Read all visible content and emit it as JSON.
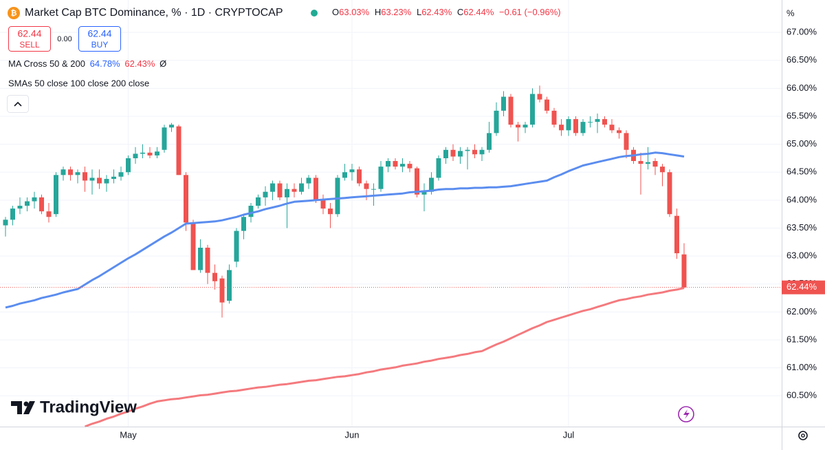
{
  "header": {
    "title": "Market Cap BTC Dominance, % · 1D · CRYPTOCAP",
    "ohlc": [
      {
        "label": "O",
        "text": "63.03%"
      },
      {
        "label": "H",
        "text": "63.23%"
      },
      {
        "label": "L",
        "text": "62.43%"
      },
      {
        "label": "C",
        "text": "62.44%"
      }
    ],
    "change": "−0.61 (−0.96%)",
    "sell": {
      "price": "62.44",
      "label": "SELL"
    },
    "spread": "0.00",
    "buy": {
      "price": "62.44",
      "label": "BUY"
    },
    "indicator": {
      "name": "MA Cross 50 & 200",
      "fast": "64.78%",
      "slow": "62.43%",
      "symbol": "Ø"
    },
    "indicator2": "SMAs 50 close 100 close 200 close",
    "axis_unit": "%",
    "watermark": "TradingView"
  },
  "chart_data": {
    "type": "candlestick",
    "categories": [
      null,
      null,
      null,
      null,
      null,
      null,
      null,
      null,
      null,
      null,
      null,
      null,
      null,
      null,
      null,
      null,
      null,
      "May",
      null,
      null,
      null,
      null,
      null,
      null,
      null,
      null,
      null,
      null,
      null,
      null,
      null,
      null,
      null,
      null,
      null,
      null,
      null,
      null,
      null,
      null,
      null,
      null,
      null,
      null,
      null,
      null,
      null,
      null,
      "Jun",
      null,
      null,
      null,
      null,
      null,
      null,
      null,
      null,
      null,
      null,
      null,
      null,
      null,
      null,
      null,
      null,
      null,
      null,
      null,
      null,
      null,
      null,
      null,
      null,
      null,
      null,
      null,
      null,
      null,
      "Jul",
      null,
      null,
      null,
      null,
      null,
      null,
      null,
      null,
      null,
      null,
      null,
      null,
      null,
      null,
      null,
      null
    ],
    "open": [
      63.55,
      63.65,
      63.85,
      63.9,
      63.98,
      64.05,
      63.8,
      63.75,
      64.45,
      64.55,
      64.45,
      64.5,
      64.35,
      64.4,
      64.3,
      64.38,
      64.42,
      64.5,
      64.75,
      64.83,
      64.85,
      64.8,
      64.9,
      65.3,
      65.32,
      64.45,
      63.6,
      62.75,
      63.15,
      62.7,
      62.6,
      62.2,
      62.9,
      63.45,
      63.7,
      63.9,
      64.05,
      64.15,
      64.3,
      64.05,
      64.2,
      64.15,
      64.3,
      64.4,
      64.0,
      63.85,
      63.75,
      64.4,
      64.5,
      64.55,
      64.3,
      64.2,
      64.2,
      64.6,
      64.7,
      64.6,
      64.65,
      64.57,
      64.1,
      64.15,
      64.4,
      64.75,
      64.9,
      64.78,
      64.88,
      64.9,
      64.82,
      64.9,
      65.2,
      65.6,
      65.85,
      65.35,
      65.3,
      65.35,
      65.9,
      65.8,
      65.6,
      65.35,
      65.25,
      65.45,
      65.2,
      65.4,
      65.4,
      65.45,
      65.35,
      65.25,
      65.2,
      64.9,
      64.7,
      64.65,
      64.7,
      64.6,
      64.5,
      63.72,
      63.03
    ],
    "high": [
      63.7,
      63.9,
      64.05,
      64.05,
      64.15,
      64.1,
      63.95,
      64.5,
      64.6,
      64.6,
      64.55,
      64.6,
      64.55,
      64.55,
      64.45,
      64.55,
      64.6,
      64.8,
      64.95,
      65.0,
      64.95,
      64.95,
      65.35,
      65.38,
      65.35,
      64.5,
      63.65,
      63.3,
      63.2,
      62.85,
      62.65,
      62.85,
      63.5,
      63.75,
      63.95,
      64.1,
      64.25,
      64.35,
      64.35,
      64.3,
      64.3,
      64.4,
      64.45,
      64.45,
      64.1,
      63.95,
      64.45,
      64.65,
      64.65,
      64.6,
      64.35,
      64.3,
      64.7,
      64.75,
      64.75,
      64.75,
      64.7,
      64.6,
      64.3,
      64.5,
      64.8,
      64.95,
      65.0,
      64.95,
      64.95,
      65.0,
      64.95,
      65.4,
      65.75,
      65.95,
      65.9,
      65.4,
      65.4,
      66.0,
      66.05,
      65.85,
      65.65,
      65.45,
      65.5,
      65.5,
      65.45,
      65.5,
      65.55,
      65.5,
      65.45,
      65.3,
      65.25,
      64.95,
      64.85,
      64.95,
      64.75,
      64.65,
      64.55,
      63.85,
      63.23
    ],
    "low": [
      63.35,
      63.55,
      63.75,
      63.8,
      63.85,
      63.75,
      63.6,
      63.7,
      64.35,
      64.35,
      64.3,
      64.15,
      64.1,
      64.2,
      64.15,
      64.3,
      64.35,
      64.45,
      64.65,
      64.75,
      64.75,
      64.75,
      64.85,
      65.22,
      64.45,
      63.45,
      62.75,
      62.7,
      62.5,
      62.4,
      61.9,
      62.15,
      62.8,
      63.3,
      63.6,
      63.85,
      63.9,
      64.0,
      64.0,
      63.5,
      64.05,
      64.1,
      64.2,
      63.95,
      63.75,
      63.5,
      63.7,
      64.35,
      64.35,
      64.25,
      64.0,
      63.9,
      64.15,
      64.5,
      64.55,
      64.5,
      64.5,
      64.05,
      63.8,
      64.1,
      64.35,
      64.65,
      64.7,
      64.65,
      64.55,
      64.75,
      64.7,
      64.85,
      65.15,
      65.5,
      65.3,
      65.05,
      65.2,
      65.3,
      65.75,
      65.55,
      65.3,
      65.15,
      65.15,
      65.15,
      65.15,
      65.3,
      65.2,
      65.3,
      65.2,
      65.1,
      64.75,
      64.65,
      64.1,
      64.55,
      64.45,
      64.25,
      63.7,
      62.95,
      62.43
    ],
    "close": [
      63.65,
      63.85,
      63.9,
      63.98,
      64.05,
      63.8,
      63.7,
      64.45,
      64.55,
      64.45,
      64.5,
      64.35,
      64.4,
      64.3,
      64.38,
      64.42,
      64.5,
      64.75,
      64.83,
      64.85,
      64.8,
      64.87,
      65.3,
      65.35,
      64.45,
      63.6,
      62.75,
      63.15,
      62.7,
      62.55,
      62.17,
      62.75,
      63.45,
      63.7,
      63.9,
      64.05,
      64.15,
      64.3,
      64.05,
      64.2,
      64.15,
      64.3,
      64.4,
      64.0,
      63.85,
      63.75,
      64.4,
      64.5,
      64.55,
      64.3,
      64.2,
      64.2,
      64.6,
      64.7,
      64.6,
      64.65,
      64.57,
      64.1,
      64.15,
      64.4,
      64.75,
      64.9,
      64.78,
      64.88,
      64.9,
      64.82,
      64.9,
      65.2,
      65.6,
      65.85,
      65.35,
      65.3,
      65.35,
      65.9,
      65.8,
      65.6,
      65.35,
      65.25,
      65.45,
      65.2,
      65.4,
      65.4,
      65.45,
      65.35,
      65.25,
      65.2,
      64.9,
      64.7,
      64.65,
      64.68,
      64.6,
      64.5,
      63.75,
      63.05,
      62.44
    ],
    "up_color": "#26a69a",
    "down_color": "#ef5350",
    "lines": [
      {
        "color": "#5b8def",
        "values": [
          62.08,
          62.11,
          62.15,
          62.18,
          62.21,
          62.25,
          62.28,
          62.31,
          62.35,
          62.38,
          62.41,
          62.49,
          62.57,
          62.64,
          62.72,
          62.8,
          62.88,
          62.96,
          63.03,
          63.11,
          63.19,
          63.27,
          63.35,
          63.42,
          63.5,
          63.58,
          63.59,
          63.6,
          63.61,
          63.62,
          63.64,
          63.67,
          63.7,
          63.74,
          63.77,
          63.8,
          63.84,
          63.87,
          63.9,
          63.94,
          63.97,
          63.98,
          63.99,
          64.0,
          64.01,
          64.02,
          64.03,
          64.04,
          64.05,
          64.06,
          64.07,
          64.08,
          64.09,
          64.1,
          64.11,
          64.12,
          64.14,
          64.15,
          64.16,
          64.17,
          64.19,
          64.2,
          64.2,
          64.21,
          64.21,
          64.22,
          64.22,
          64.23,
          64.23,
          64.24,
          64.25,
          64.27,
          64.29,
          64.31,
          64.33,
          64.35,
          64.41,
          64.46,
          64.52,
          64.57,
          64.62,
          64.65,
          64.68,
          64.71,
          64.74,
          64.77,
          64.79,
          64.8,
          64.82,
          64.83,
          64.85,
          64.84,
          64.82,
          64.8,
          64.78
        ]
      },
      {
        "color": "#f47a7e",
        "values": [
          null,
          null,
          null,
          null,
          null,
          null,
          null,
          null,
          null,
          null,
          null,
          59.95,
          60.0,
          60.04,
          60.09,
          60.13,
          60.18,
          60.22,
          60.27,
          60.31,
          60.36,
          60.4,
          60.42,
          60.44,
          60.45,
          60.47,
          60.49,
          60.51,
          60.52,
          60.54,
          60.56,
          60.58,
          60.59,
          60.61,
          60.63,
          60.65,
          60.66,
          60.68,
          60.7,
          60.71,
          60.73,
          60.75,
          60.77,
          60.78,
          60.8,
          60.82,
          60.84,
          60.85,
          60.87,
          60.89,
          60.92,
          60.94,
          60.97,
          60.99,
          61.01,
          61.04,
          61.06,
          61.08,
          61.11,
          61.13,
          61.16,
          61.18,
          61.2,
          61.23,
          61.25,
          61.28,
          61.3,
          61.36,
          61.42,
          61.47,
          61.53,
          61.59,
          61.65,
          61.71,
          61.76,
          61.82,
          61.86,
          61.9,
          61.94,
          61.98,
          62.02,
          62.05,
          62.09,
          62.13,
          62.17,
          62.21,
          62.23,
          62.26,
          62.28,
          62.31,
          62.33,
          62.35,
          62.38,
          62.4,
          62.43
        ]
      }
    ],
    "last_price": {
      "value": 62.44,
      "label": "62.44%"
    },
    "ylim": [
      59.95,
      67.58
    ],
    "yticks": [
      {
        "value": 60.5,
        "label": "60.50%"
      },
      {
        "value": 61,
        "label": "61.00%"
      },
      {
        "value": 61.5,
        "label": "61.50%"
      },
      {
        "value": 62,
        "label": "62.00%"
      },
      {
        "value": 62.5,
        "label": "62.50%"
      },
      {
        "value": 63,
        "label": "63.00%"
      },
      {
        "value": 63.5,
        "label": "63.50%"
      },
      {
        "value": 64,
        "label": "64.00%"
      },
      {
        "value": 64.5,
        "label": "64.50%"
      },
      {
        "value": 65,
        "label": "65.00%"
      },
      {
        "value": 65.5,
        "label": "65.50%"
      },
      {
        "value": 66,
        "label": "66.00%"
      },
      {
        "value": 66.5,
        "label": "66.50%"
      },
      {
        "value": 67,
        "label": "67.00%"
      }
    ],
    "grid": true
  }
}
